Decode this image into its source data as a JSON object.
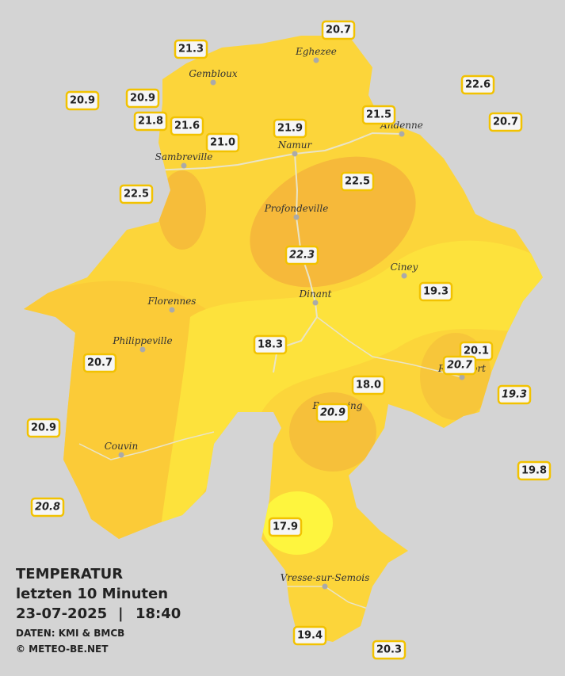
{
  "legend": {
    "title": "TEMPERATUR",
    "period": "letzten 10 Minuten",
    "date": "23-07-2025",
    "separator": "|",
    "time": "18:40",
    "source": "DATEN: KMI & BMCB",
    "copyright": "© METEO-BE.NET"
  },
  "cities": [
    "Eghezee",
    "Gembloux",
    "Andenne",
    "Namur",
    "Sambreville",
    "Profondeville",
    "Ciney",
    "Dinant",
    "Florennes",
    "Philippeville",
    "Rochefort",
    "Beauraing",
    "Couvin",
    "Vresse-sur-Semois"
  ],
  "stations": [
    "20.7",
    "21.3",
    "22.6",
    "20.9",
    "20.9",
    "21.5",
    "20.7",
    "21.8",
    "21.6",
    "21.9",
    "21.0",
    "22.5",
    "22.5",
    "22.3",
    "19.3",
    "18.3",
    "20.1",
    "20.7",
    "20.7",
    "18.0",
    "19.3",
    "20.9",
    "20.9",
    "19.8",
    "20.8",
    "17.9",
    "19.4",
    "20.3"
  ]
}
